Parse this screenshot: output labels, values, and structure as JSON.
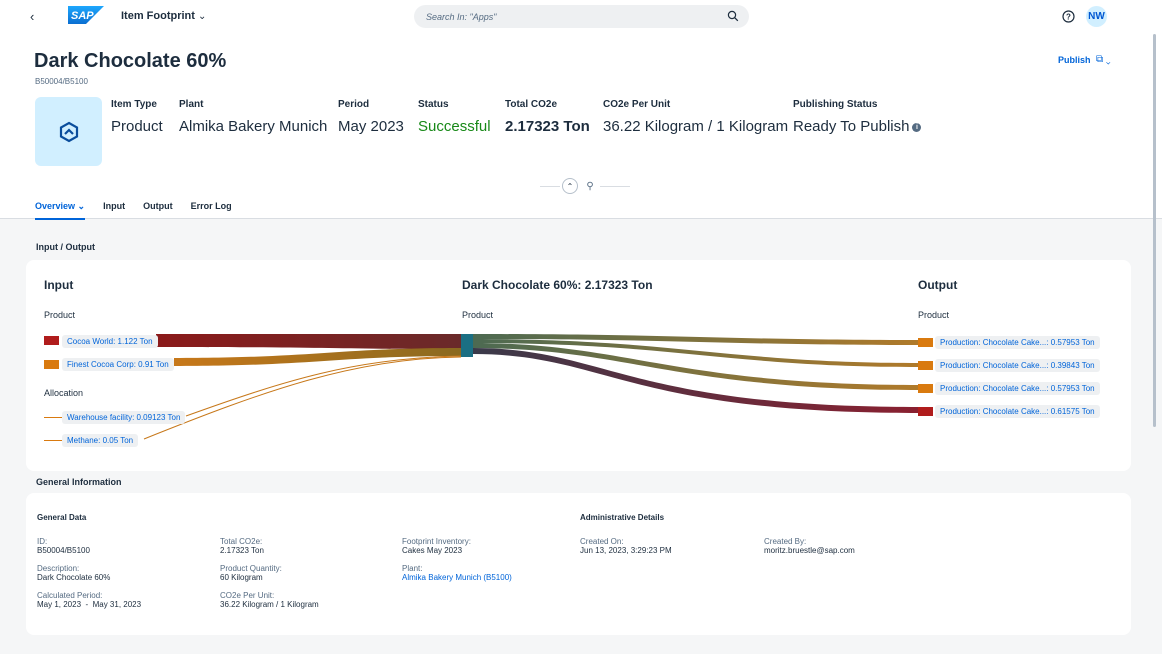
{
  "shell": {
    "back": "‹",
    "logo_text": "SAP",
    "app_title": "Item Footprint",
    "search_placeholder": "Search In: \"Apps\"",
    "avatar_initials": "NW"
  },
  "header": {
    "title": "Dark Chocolate 60%",
    "subtitle": "B50004/B5100",
    "publish_label": "Publish",
    "attributes": [
      {
        "label": "Item Type",
        "value": "Product"
      },
      {
        "label": "Plant",
        "value": "Almika Bakery Munich"
      },
      {
        "label": "Period",
        "value": "May 2023"
      },
      {
        "label": "Status",
        "value": "Successful"
      },
      {
        "label": "Total CO2e",
        "value": "2.17323 Ton"
      },
      {
        "label": "CO2e Per Unit",
        "value": "36.22 Kilogram / 1 Kilogram"
      },
      {
        "label": "Publishing Status",
        "value": "Ready To Publish"
      }
    ],
    "status_color": "#188918"
  },
  "tabs": [
    {
      "label": "Overview"
    },
    {
      "label": "Input"
    },
    {
      "label": "Output"
    },
    {
      "label": "Error Log"
    }
  ],
  "io_section": {
    "title": "Input / Output",
    "input_head": "Input",
    "center_head": "Dark Chocolate 60%: 2.17323 Ton",
    "output_head": "Output",
    "input_product_label": "Product",
    "center_product_label": "Product",
    "output_product_label": "Product",
    "allocation_label": "Allocation",
    "inputs": [
      {
        "label": "Cocoa World: 1.122 Ton",
        "color": "#b01c1c"
      },
      {
        "label": "Finest Cocoa Corp: 0.91 Ton",
        "color": "#d97a0f"
      }
    ],
    "allocations": [
      {
        "label": "Warehouse facility: 0.09123 Ton",
        "color": "#d97a0f"
      },
      {
        "label": "Methane: 0.05 Ton",
        "color": "#d97a0f"
      }
    ],
    "outputs": [
      {
        "label": "Production: Chocolate Cake...: 0.57953 Ton",
        "color": "#d97a0f"
      },
      {
        "label": "Production: Chocolate Cake...: 0.39843 Ton",
        "color": "#d97a0f"
      },
      {
        "label": "Production: Chocolate Cake...: 0.57953 Ton",
        "color": "#d97a0f"
      },
      {
        "label": "Production: Chocolate Cake...: 0.61575 Ton",
        "color": "#b01c1c"
      }
    ]
  },
  "general": {
    "title": "General Information",
    "general_data_head": "General Data",
    "admin_head": "Administrative Details",
    "id_label": "ID:",
    "id_value": "B50004/B5100",
    "desc_label": "Description:",
    "desc_value": "Dark Chocolate 60%",
    "period_label": "Calculated Period:",
    "period_value": "May 1, 2023  -  May 31, 2023",
    "total_label": "Total CO2e:",
    "total_value": "2.17323 Ton",
    "qty_label": "Product Quantity:",
    "qty_value": "60 Kilogram",
    "unit_label": "CO2e Per Unit:",
    "unit_value": "36.22 Kilogram / 1 Kilogram",
    "inventory_label": "Footprint Inventory:",
    "inventory_value": "Cakes May 2023",
    "plant_label": "Plant:",
    "plant_value": "Almika Bakery Munich (B5100)",
    "created_on_label": "Created On:",
    "created_on_value": "Jun 13, 2023, 3:29:23 PM",
    "created_by_label": "Created By:",
    "created_by_value": "moritz.bruestle@sap.com"
  }
}
